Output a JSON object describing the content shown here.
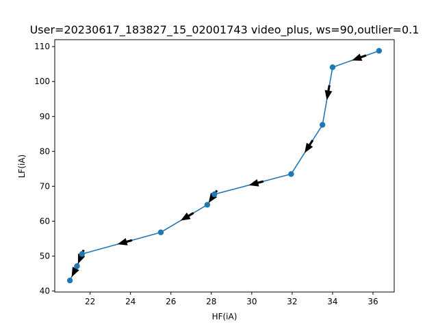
{
  "chart_data": {
    "type": "line",
    "title": "User=20230617_183827_15_02001743 video_plus, ws=90,outlier=0.1",
    "xlabel": "HF(iA)",
    "ylabel": "LF(iA)",
    "xlim": [
      20.25,
      37.05
    ],
    "ylim": [
      39.7,
      112.0
    ],
    "xticks": [
      22,
      24,
      26,
      28,
      30,
      32,
      34,
      36
    ],
    "yticks": [
      40,
      50,
      60,
      70,
      80,
      90,
      100,
      110
    ],
    "grid": false,
    "legend": "none",
    "series": [
      {
        "marker": "circle",
        "color": "#1f77b4",
        "points": [
          {
            "x": 36.3,
            "y": 108.8
          },
          {
            "x": 34.0,
            "y": 104.1
          },
          {
            "x": 33.5,
            "y": 87.6
          },
          {
            "x": 31.95,
            "y": 73.5
          },
          {
            "x": 28.15,
            "y": 67.7
          },
          {
            "x": 27.8,
            "y": 64.7
          },
          {
            "x": 25.5,
            "y": 56.8
          },
          {
            "x": 21.6,
            "y": 50.6
          },
          {
            "x": 21.35,
            "y": 47.1
          },
          {
            "x": 21.0,
            "y": 43.0
          }
        ]
      }
    ],
    "arrows": {
      "color": "#000000",
      "direction": "toward next point (decreasing x)"
    }
  }
}
